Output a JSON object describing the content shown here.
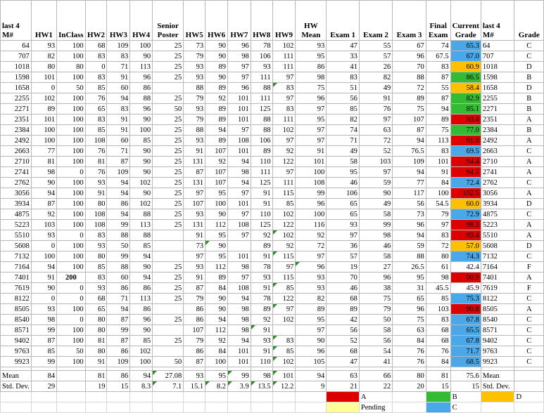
{
  "colors": {
    "A": "#dd0000",
    "B": "#33bb33",
    "C": "#4aa8e8",
    "D": "#ffc000",
    "F": "#ffffff",
    "Pending": "#ffff99"
  },
  "headers": [
    "last 4 M#",
    "HW1",
    "InClass",
    "HW2",
    "HW3",
    "HW4",
    "Senior Poster",
    "HW5",
    "HW6",
    "HW7",
    "HW8",
    "HW9",
    "HW Mean",
    "Exam 1",
    "Exam 2",
    "Exam 3",
    "Final Exam",
    "Current Grade",
    "last 4 M#",
    "Grade"
  ],
  "rows": [
    {
      "cells": [
        "64",
        "93",
        "100",
        "68",
        "109",
        "100",
        "25",
        "73",
        "90",
        "96",
        "78",
        "102",
        "93",
        "47",
        "55",
        "67",
        "74",
        "65.3",
        "64",
        "C"
      ],
      "band": "C"
    },
    {
      "cells": [
        "707",
        "82",
        "100",
        "83",
        "83",
        "90",
        "25",
        "79",
        "90",
        "98",
        "106",
        "111",
        "95",
        "33",
        "57",
        "96",
        "67.5",
        "67.0",
        "707",
        "C"
      ],
      "band": "C"
    },
    {
      "cells": [
        "1018",
        "80",
        "80",
        "0",
        "71",
        "113",
        "25",
        "93",
        "89",
        "97",
        "93",
        "111",
        "86",
        "41",
        "26",
        "70",
        "83",
        "60.9",
        "1018",
        "D"
      ],
      "band": "D"
    },
    {
      "cells": [
        "1598",
        "101",
        "100",
        "83",
        "91",
        "96",
        "25",
        "93",
        "90",
        "97",
        "111",
        "97",
        "98",
        "83",
        "82",
        "88",
        "87",
        "86.5",
        "1598",
        "B"
      ],
      "band": "B"
    },
    {
      "cells": [
        "1658",
        "0",
        "50",
        "85",
        "60",
        "86",
        "",
        "88",
        "89",
        "96",
        "88",
        "83",
        "75",
        "51",
        "49",
        "72",
        "55",
        "58.4",
        "1658",
        "D"
      ],
      "band": "D"
    },
    {
      "cells": [
        "2255",
        "102",
        "100",
        "76",
        "94",
        "88",
        "25",
        "79",
        "92",
        "101",
        "111",
        "97",
        "96",
        "56",
        "91",
        "89",
        "87",
        "82.9",
        "2255",
        "B"
      ],
      "band": "B"
    },
    {
      "cells": [
        "2271",
        "89",
        "100",
        "65",
        "83",
        "96",
        "50",
        "93",
        "89",
        "101",
        "125",
        "83",
        "97",
        "85",
        "76",
        "75",
        "94",
        "85.1",
        "2271",
        "B"
      ],
      "band": "B"
    },
    {
      "cells": [
        "2351",
        "101",
        "100",
        "83",
        "91",
        "90",
        "25",
        "79",
        "89",
        "101",
        "88",
        "111",
        "95",
        "82",
        "97",
        "107",
        "89",
        "93.4",
        "2351",
        "A"
      ],
      "band": "A"
    },
    {
      "cells": [
        "2384",
        "100",
        "100",
        "85",
        "91",
        "100",
        "25",
        "88",
        "94",
        "97",
        "88",
        "102",
        "97",
        "74",
        "63",
        "87",
        "75",
        "77.0",
        "2384",
        "B"
      ],
      "band": "B"
    },
    {
      "cells": [
        "2492",
        "100",
        "100",
        "108",
        "60",
        "85",
        "25",
        "93",
        "89",
        "108",
        "106",
        "97",
        "97",
        "71",
        "72",
        "94",
        "113",
        "91.0",
        "2492",
        "A"
      ],
      "band": "A"
    },
    {
      "cells": [
        "2663",
        "77",
        "100",
        "76",
        "71",
        "90",
        "25",
        "91",
        "107",
        "101",
        "89",
        "92",
        "91",
        "49",
        "52",
        "76.5",
        "83",
        "69.5",
        "2663",
        "C"
      ],
      "band": "C"
    },
    {
      "cells": [
        "2710",
        "81",
        "100",
        "81",
        "87",
        "90",
        "25",
        "131",
        "92",
        "94",
        "110",
        "122",
        "101",
        "58",
        "103",
        "109",
        "101",
        "94.4",
        "2710",
        "A"
      ],
      "band": "A"
    },
    {
      "cells": [
        "2741",
        "98",
        "0",
        "76",
        "109",
        "90",
        "25",
        "87",
        "107",
        "98",
        "111",
        "97",
        "100",
        "95",
        "97",
        "94",
        "91",
        "94.5",
        "2741",
        "A"
      ],
      "band": "A"
    },
    {
      "cells": [
        "2762",
        "90",
        "100",
        "93",
        "94",
        "102",
        "25",
        "131",
        "107",
        "94",
        "125",
        "111",
        "108",
        "46",
        "59",
        "77",
        "84",
        "72.4",
        "2762",
        "C"
      ],
      "band": "C"
    },
    {
      "cells": [
        "3056",
        "94",
        "100",
        "91",
        "94",
        "90",
        "25",
        "97",
        "95",
        "97",
        "91",
        "115",
        "99",
        "106",
        "90",
        "117",
        "100",
        "102.5",
        "3056",
        "A"
      ],
      "band": "A"
    },
    {
      "cells": [
        "3934",
        "87",
        "100",
        "80",
        "86",
        "102",
        "25",
        "107",
        "100",
        "101",
        "91",
        "85",
        "96",
        "65",
        "49",
        "56",
        "54.5",
        "60.0",
        "3934",
        "D"
      ],
      "band": "D"
    },
    {
      "cells": [
        "4875",
        "92",
        "100",
        "108",
        "94",
        "88",
        "25",
        "93",
        "90",
        "97",
        "110",
        "102",
        "100",
        "65",
        "58",
        "73",
        "79",
        "72.9",
        "4875",
        "C"
      ],
      "band": "C"
    },
    {
      "cells": [
        "5223",
        "103",
        "100",
        "108",
        "99",
        "113",
        "25",
        "131",
        "112",
        "108",
        "125",
        "122",
        "116",
        "93",
        "99",
        "96",
        "97",
        "98.3",
        "5223",
        "A"
      ],
      "band": "A"
    },
    {
      "cells": [
        "5510",
        "93",
        "0",
        "83",
        "88",
        "88",
        "",
        "91",
        "95",
        "97",
        "92",
        "102",
        "92",
        "97",
        "98",
        "94",
        "83",
        "93.4",
        "5510",
        "A"
      ],
      "band": "A"
    },
    {
      "cells": [
        "5608",
        "0",
        "100",
        "93",
        "50",
        "85",
        "",
        "73",
        "90",
        "",
        "89",
        "92",
        "72",
        "36",
        "46",
        "59",
        "72",
        "57.0",
        "5608",
        "D"
      ],
      "band": "D"
    },
    {
      "cells": [
        "7132",
        "100",
        "100",
        "80",
        "99",
        "94",
        "",
        "97",
        "95",
        "101",
        "91",
        "115",
        "97",
        "57",
        "58",
        "88",
        "80",
        "74.3",
        "7132",
        "C"
      ],
      "band": "C"
    },
    {
      "cells": [
        "7164",
        "94",
        "100",
        "85",
        "88",
        "90",
        "25",
        "93",
        "112",
        "98",
        "78",
        "97",
        "96",
        "19",
        "27",
        "26.5",
        "61",
        "42.4",
        "7164",
        "F"
      ],
      "band": "F"
    },
    {
      "cells": [
        "7401",
        "91",
        "200",
        "83",
        "60",
        "94",
        "25",
        "91",
        "89",
        "97",
        "93",
        "115",
        "93",
        "70",
        "96",
        "95",
        "98",
        "90.9",
        "7401",
        "A"
      ],
      "band": "A"
    },
    {
      "cells": [
        "7619",
        "90",
        "0",
        "93",
        "86",
        "86",
        "25",
        "87",
        "84",
        "108",
        "91",
        "85",
        "93",
        "46",
        "38",
        "31",
        "45.5",
        "45.9",
        "7619",
        "F"
      ],
      "band": "F"
    },
    {
      "cells": [
        "8122",
        "0",
        "0",
        "68",
        "71",
        "113",
        "25",
        "79",
        "90",
        "94",
        "78",
        "122",
        "82",
        "68",
        "75",
        "65",
        "85",
        "75.3",
        "8122",
        "C"
      ],
      "band": "C"
    },
    {
      "cells": [
        "8505",
        "93",
        "100",
        "65",
        "94",
        "86",
        "",
        "86",
        "90",
        "98",
        "89",
        "97",
        "89",
        "89",
        "79",
        "96",
        "103",
        "90.8",
        "8505",
        "A"
      ],
      "band": "A"
    },
    {
      "cells": [
        "8540",
        "98",
        "0",
        "80",
        "87",
        "96",
        "25",
        "86",
        "94",
        "98",
        "92",
        "102",
        "95",
        "42",
        "50",
        "75",
        "83",
        "67.8",
        "8540",
        "C"
      ],
      "band": "C"
    },
    {
      "cells": [
        "8571",
        "99",
        "100",
        "80",
        "99",
        "90",
        "",
        "107",
        "112",
        "98",
        "91",
        "",
        "97",
        "56",
        "58",
        "63",
        "68",
        "65.5",
        "8571",
        "C"
      ],
      "band": "C"
    },
    {
      "cells": [
        "9402",
        "87",
        "100",
        "81",
        "87",
        "85",
        "25",
        "79",
        "92",
        "94",
        "93",
        "83",
        "90",
        "52",
        "56",
        "84",
        "68",
        "67.8",
        "9402",
        "C"
      ],
      "band": "C"
    },
    {
      "cells": [
        "9763",
        "85",
        "50",
        "80",
        "86",
        "102",
        "",
        "86",
        "84",
        "101",
        "91",
        "85",
        "96",
        "68",
        "54",
        "76",
        "76",
        "71.7",
        "9763",
        "C"
      ],
      "band": "C"
    },
    {
      "cells": [
        "9923",
        "99",
        "100",
        "91",
        "109",
        "100",
        "50",
        "87",
        "100",
        "101",
        "110",
        "102",
        "105",
        "47",
        "41",
        "76",
        "84",
        "68.5",
        "9923",
        "C"
      ],
      "band": "C"
    }
  ],
  "summary": [
    {
      "cells": [
        "Mean",
        "84",
        "",
        "81",
        "86",
        "94",
        "27.08",
        "93",
        "95",
        "99",
        "98",
        "101",
        "94",
        "63",
        "66",
        "80",
        "81",
        "75.6",
        "Mean",
        ""
      ]
    },
    {
      "cells": [
        "Std. Dev.",
        "29",
        "",
        "19",
        "15",
        "8.3",
        "7.1",
        "15.1",
        "8.2",
        "3.9",
        "13.5",
        "12.2",
        "9",
        "21",
        "22",
        "20",
        "15",
        "15",
        "Std. Dev.",
        ""
      ]
    }
  ],
  "legend": {
    "row1": [
      {
        "color": "A",
        "label": "A"
      },
      {
        "color": "B",
        "label": "B"
      },
      {
        "color": "D",
        "label": "D"
      }
    ],
    "row2": [
      {
        "color": "Pending",
        "label": "Pending"
      },
      {
        "color": "C",
        "label": "C"
      }
    ]
  }
}
